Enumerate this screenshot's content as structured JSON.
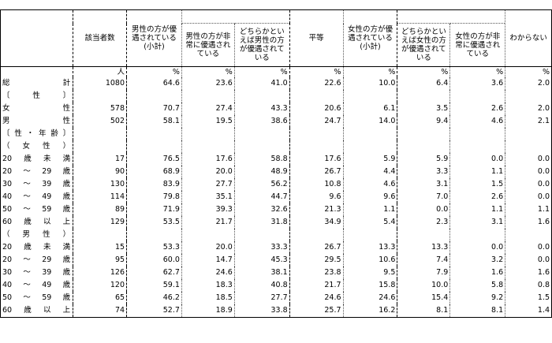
{
  "headers": {
    "count": "該当者数",
    "male_subtotal": "男性の方が優遇されている(小計)",
    "male_very": "男性の方が非常に優遇されている",
    "male_somewhat": "どちらかといえば男性の方が優遇されている",
    "equal": "平等",
    "female_subtotal": "女性の方が優遇されている(小計)",
    "female_somewhat": "どちらかといえば女性の方が優遇されている",
    "female_very": "女性の方が非常に優遇されている",
    "unknown": "わからない"
  },
  "units": [
    "人",
    "%",
    "%",
    "%",
    "%",
    "%",
    "%",
    "%",
    "%"
  ],
  "rows": [
    {
      "label": [
        "総",
        "計"
      ],
      "values": [
        "1080",
        "64.6",
        "23.6",
        "41.0",
        "22.6",
        "10.0",
        "6.4",
        "3.6",
        "2.0"
      ]
    },
    {
      "label": [
        "〔",
        "性",
        "〕"
      ],
      "values": [
        "",
        "",
        "",
        "",
        "",
        "",
        "",
        "",
        ""
      ]
    },
    {
      "label": [
        "女",
        "性"
      ],
      "values": [
        "578",
        "70.7",
        "27.4",
        "43.3",
        "20.6",
        "6.1",
        "3.5",
        "2.6",
        "2.0"
      ]
    },
    {
      "label": [
        "男",
        "性"
      ],
      "values": [
        "502",
        "58.1",
        "19.5",
        "38.6",
        "24.7",
        "14.0",
        "9.4",
        "4.6",
        "2.1"
      ]
    },
    {
      "label": [
        "〔",
        "性",
        "・",
        "年",
        "齢",
        "〕"
      ],
      "values": [
        "",
        "",
        "",
        "",
        "",
        "",
        "",
        "",
        ""
      ]
    },
    {
      "label": [
        "（",
        "女",
        "性",
        "）"
      ],
      "values": [
        "",
        "",
        "",
        "",
        "",
        "",
        "",
        "",
        ""
      ]
    },
    {
      "label": [
        "20",
        "歳",
        "未",
        "満"
      ],
      "values": [
        "17",
        "76.5",
        "17.6",
        "58.8",
        "17.6",
        "5.9",
        "5.9",
        "0.0",
        "0.0"
      ]
    },
    {
      "label": [
        "20",
        "～",
        "29",
        "歳"
      ],
      "values": [
        "90",
        "68.9",
        "20.0",
        "48.9",
        "26.7",
        "4.4",
        "3.3",
        "1.1",
        "0.0"
      ]
    },
    {
      "label": [
        "30",
        "～",
        "39",
        "歳"
      ],
      "values": [
        "130",
        "83.9",
        "27.7",
        "56.2",
        "10.8",
        "4.6",
        "3.1",
        "1.5",
        "0.0"
      ]
    },
    {
      "label": [
        "40",
        "～",
        "49",
        "歳"
      ],
      "values": [
        "114",
        "79.8",
        "35.1",
        "44.7",
        "9.6",
        "9.6",
        "7.0",
        "2.6",
        "0.0"
      ]
    },
    {
      "label": [
        "50",
        "～",
        "59",
        "歳"
      ],
      "values": [
        "89",
        "71.9",
        "39.3",
        "32.6",
        "21.3",
        "1.1",
        "0.0",
        "1.1",
        "1.1"
      ]
    },
    {
      "label": [
        "60",
        "歳",
        "以",
        "上"
      ],
      "values": [
        "129",
        "53.5",
        "21.7",
        "31.8",
        "34.9",
        "5.4",
        "2.3",
        "3.1",
        "1.6"
      ]
    },
    {
      "label": [
        "（",
        "男",
        "性",
        "）"
      ],
      "values": [
        "",
        "",
        "",
        "",
        "",
        "",
        "",
        "",
        ""
      ]
    },
    {
      "label": [
        "20",
        "歳",
        "未",
        "満"
      ],
      "values": [
        "15",
        "53.3",
        "20.0",
        "33.3",
        "26.7",
        "13.3",
        "13.3",
        "0.0",
        "0.0"
      ]
    },
    {
      "label": [
        "20",
        "～",
        "29",
        "歳"
      ],
      "values": [
        "95",
        "60.0",
        "14.7",
        "45.3",
        "29.5",
        "10.6",
        "7.4",
        "3.2",
        "0.0"
      ]
    },
    {
      "label": [
        "30",
        "～",
        "39",
        "歳"
      ],
      "values": [
        "126",
        "62.7",
        "24.6",
        "38.1",
        "23.8",
        "9.5",
        "7.9",
        "1.6",
        "1.6"
      ]
    },
    {
      "label": [
        "40",
        "～",
        "49",
        "歳"
      ],
      "values": [
        "120",
        "59.1",
        "18.3",
        "40.8",
        "21.7",
        "15.8",
        "10.0",
        "5.8",
        "0.8"
      ]
    },
    {
      "label": [
        "50",
        "～",
        "59",
        "歳"
      ],
      "values": [
        "65",
        "46.2",
        "18.5",
        "27.7",
        "24.6",
        "24.6",
        "15.4",
        "9.2",
        "1.5"
      ]
    },
    {
      "label": [
        "60",
        "歳",
        "以",
        "上"
      ],
      "values": [
        "74",
        "52.7",
        "18.9",
        "33.8",
        "25.7",
        "16.2",
        "8.1",
        "8.1",
        "1.4"
      ]
    }
  ]
}
